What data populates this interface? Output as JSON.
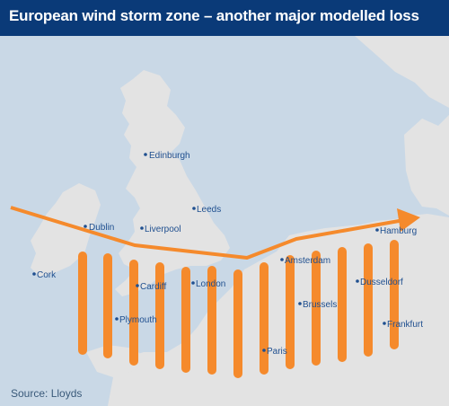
{
  "title": "European wind storm zone – another major modelled loss",
  "source": "Source: Lloyds",
  "colors": {
    "header_bg": "#0a3a78",
    "sea": "#c9d8e6",
    "land": "#e3e3e3",
    "storm": "#f58a2c",
    "city_label": "#1f4f8f"
  },
  "cities": [
    {
      "name": "Edinburgh"
    },
    {
      "name": "Leeds"
    },
    {
      "name": "Dublin"
    },
    {
      "name": "Liverpool"
    },
    {
      "name": "Cork"
    },
    {
      "name": "Cardiff"
    },
    {
      "name": "London"
    },
    {
      "name": "Plymouth"
    },
    {
      "name": "Amsterdam"
    },
    {
      "name": "Hamburg"
    },
    {
      "name": "Brussels"
    },
    {
      "name": "Dusseldorf"
    },
    {
      "name": "Paris"
    },
    {
      "name": "Frankfurt"
    }
  ],
  "legend": {
    "storm_zone_icon": "vertical-orange-bars",
    "storm_track_icon": "orange-arrow-right"
  }
}
